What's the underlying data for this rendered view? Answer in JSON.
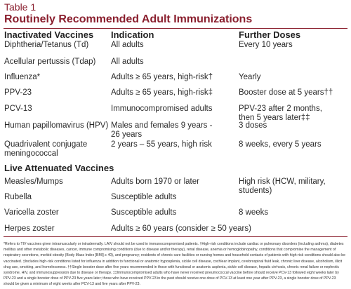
{
  "table_label": "Table 1",
  "title": "Routinely Recommended Adult Immunizations",
  "headers": {
    "vaccine": "Inactivated Vaccines",
    "indication": "Indication",
    "doses": "Further Doses"
  },
  "inactivated_rows": [
    {
      "vaccine": "Diphtheria/Tetanus (Td)",
      "indication": "All adults",
      "doses": "Every 10 years"
    },
    {
      "vaccine": "Acellular pertussis (Tdap)",
      "indication": "All adults",
      "doses": ""
    },
    {
      "vaccine": "Influenza*",
      "indication": "Adults ≥ 65 years, high-risk†",
      "doses": "Yearly"
    },
    {
      "vaccine": "PPV-23",
      "indication": "Adults ≥ 65 years, high-risk‡",
      "doses": "Booster dose at 5 years††"
    },
    {
      "vaccine": "PCV-13",
      "indication": "Immunocompromised adults",
      "doses": "PPV-23 after 2 months,\nthen 5 years later‡‡"
    },
    {
      "vaccine": "Human papillomavirus (HPV)",
      "indication": "Males and females 9 years -\n26 years",
      "doses": "3 doses"
    },
    {
      "vaccine": "Quadrivalent conjugate\nmeningococcal",
      "indication": "2 years – 55 years, high risk",
      "doses": "8 weeks, every 5 years"
    }
  ],
  "live_section_label": "Live Attenuated Vaccines",
  "live_rows": [
    {
      "vaccine": "Measles/Mumps",
      "indication": "Adults born 1970 or later",
      "doses": "High risk (HCW, military,\nstudents)"
    },
    {
      "vaccine": "Rubella",
      "indication": "Susceptible adults",
      "doses": ""
    },
    {
      "vaccine": "Varicella zoster",
      "indication": "Susceptible adults",
      "doses": "8 weeks"
    },
    {
      "vaccine": "Herpes zoster",
      "indication": "Adults ≥ 60 years (consider ≥ 50 years)",
      "doses": ""
    }
  ],
  "footnote": "*Refers to TIV vaccines given intramuscularly or intradermally. LAIV should not be used in immunocompromised patients. †High-risk conditions include cardiac or pulmonary disorders (including asthma), diabetes mellitus and other metabolic diseases, cancer, immune compromising conditions (due to disease and/or therapy), renal disease, anemia or hemoglobinopathy, conditions that compromise the management of respiratory secretions, morbid obesity (Body Mass Index [BMI] ≥ 40), and pregnancy; residents of chronic care facilities or nursing homes and household contacts of patients with high-risk conditions should also be vaccinated. ‡Includes high-risk conditions listed for influenza in addition to functional or anatomic hyposplenia, sickle cell disease, cochlear implant, cerebrospinal fluid leak, chronic liver disease, alcoholism, illicit drug use, smoking, and homelessness. ††Single booster dose after five years recommended in those with functional or anatomic asplenia, sickle cell disease, hepatic cirrhosis, chronic renal failure or nephrotic syndrome, HIV, and immunosuppression due to disease or therapy. ‡‡Immunocompromised adults who have never received pneumococcal vaccine before should receive PCV-13 followed eight weeks later by PPV-23 and a single booster dose of PPV-23 five years later; those who have received PPV-23 in the past should receive one dose of PCV-13 at least one year after PPV-23, a single booster dose of PPV-23 should be given a minimum of eight weeks after PCV-13 and five years after PPV-23."
}
